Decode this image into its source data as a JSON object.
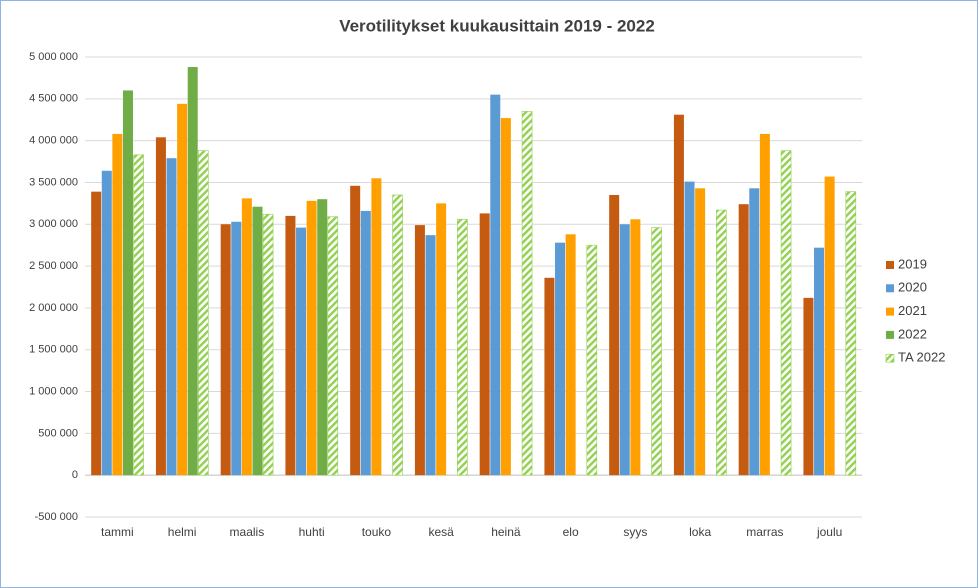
{
  "chart_data": {
    "type": "bar",
    "title": "Verotilitykset kuukausittain 2019 - 2022",
    "categories": [
      "tammi",
      "helmi",
      "maalis",
      "huhti",
      "touko",
      "kesä",
      "heinä",
      "elo",
      "syys",
      "loka",
      "marras",
      "joulu"
    ],
    "series": [
      {
        "name": "2019",
        "color": "#c55a11",
        "values": [
          3390000,
          4040000,
          3000000,
          3100000,
          3460000,
          2990000,
          3130000,
          2360000,
          3350000,
          4310000,
          3240000,
          2120000
        ]
      },
      {
        "name": "2020",
        "color": "#5b9bd5",
        "values": [
          3640000,
          3790000,
          3030000,
          2960000,
          3160000,
          2870000,
          4550000,
          2780000,
          3000000,
          3510000,
          3430000,
          2720000
        ]
      },
      {
        "name": "2021",
        "color": "#ffa000",
        "values": [
          4080000,
          4440000,
          3310000,
          3280000,
          3550000,
          3250000,
          4270000,
          2880000,
          3060000,
          3430000,
          4080000,
          3570000
        ]
      },
      {
        "name": "2022",
        "color": "#70ad47",
        "values": [
          4600000,
          4880000,
          3210000,
          3300000,
          null,
          null,
          null,
          null,
          null,
          null,
          null,
          null
        ]
      },
      {
        "name": "TA 2022",
        "color": "#92d050",
        "pattern": "diagonal",
        "values": [
          3830000,
          3880000,
          3120000,
          3090000,
          3350000,
          3060000,
          4350000,
          2750000,
          2960000,
          3170000,
          3880000,
          3390000
        ]
      }
    ],
    "ylim": [
      -500000,
      5000000
    ],
    "yticks": [
      {
        "value": -500000,
        "label": "-500 000"
      },
      0,
      {
        "value": 500000,
        "label": "500 000"
      },
      {
        "value": 1000000,
        "label": "1 000 000"
      },
      {
        "value": 1500000,
        "label": "1 500 000"
      },
      {
        "value": 2000000,
        "label": "2 000 000"
      },
      {
        "value": 2500000,
        "label": "2 500 000"
      },
      {
        "value": 3000000,
        "label": "3 000 000"
      },
      {
        "value": 3500000,
        "label": "3 500 000"
      },
      {
        "value": 4000000,
        "label": "4 000 000"
      },
      {
        "value": 4500000,
        "label": "4 500 000"
      },
      {
        "value": 5000000,
        "label": "5 000 000"
      }
    ],
    "grid": true,
    "legend": "right"
  }
}
